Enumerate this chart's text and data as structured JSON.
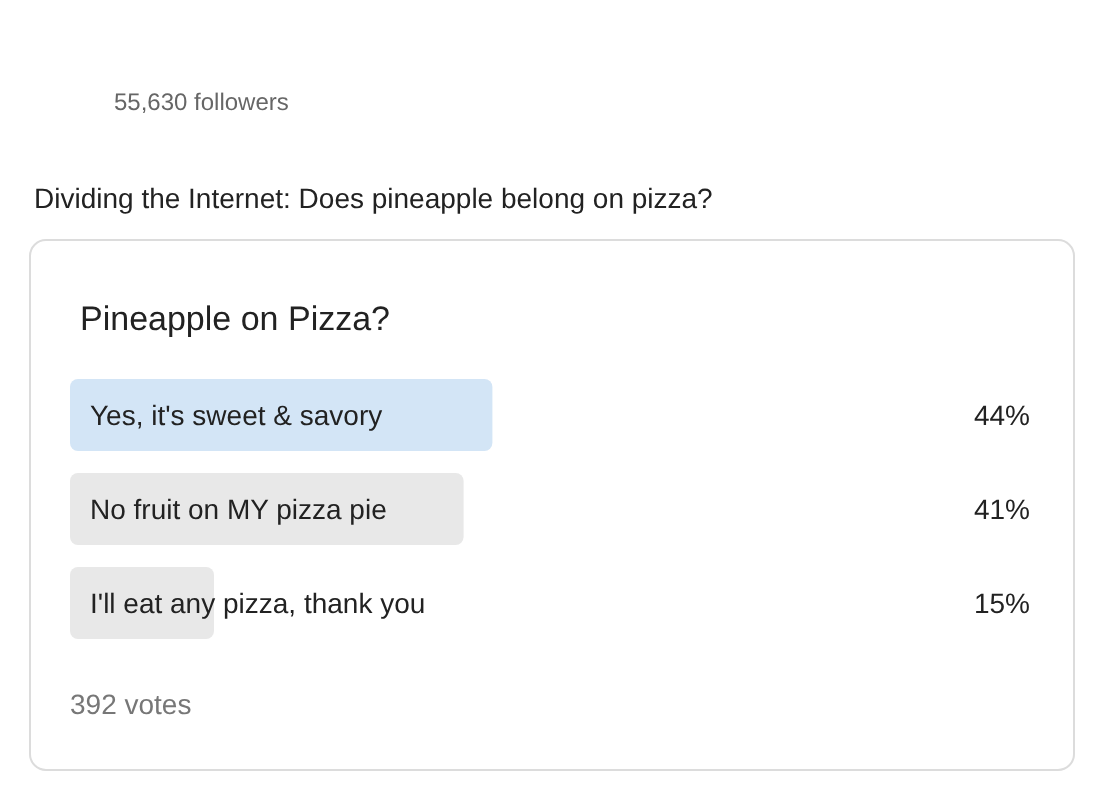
{
  "chart_data": {
    "type": "bar",
    "orientation": "horizontal",
    "title": "Pineapple on Pizza?",
    "categories": [
      "Yes, it's sweet & savory",
      "No fruit on MY pizza pie",
      "I'll eat any pizza, thank you"
    ],
    "values": [
      44,
      41,
      15
    ],
    "value_labels": [
      "44%",
      "41%",
      "15%"
    ],
    "colors": [
      "#d3e5f6",
      "#e8e8e8",
      "#e8e8e8"
    ],
    "annotations": [
      "55,630 followers",
      "Dividing the Internet: Does pineapple belong on pizza?",
      "392 votes"
    ]
  }
}
